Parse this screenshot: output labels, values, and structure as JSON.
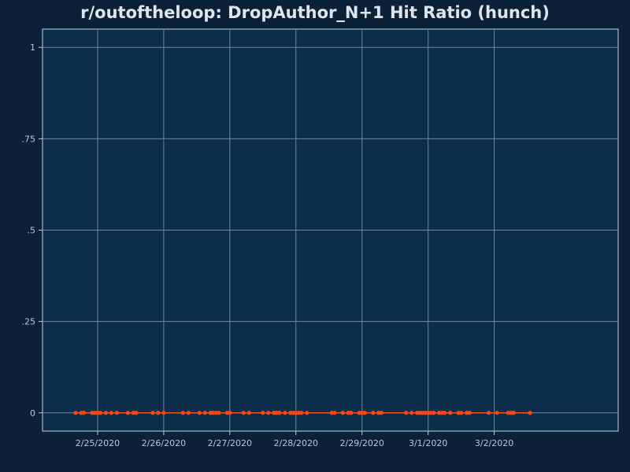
{
  "chart_data": {
    "type": "line",
    "title": "r/outoftheloop: DropAuthor_N+1 Hit Ratio (hunch)",
    "xlabel": "",
    "ylabel": "",
    "ylim": [
      -0.05,
      1.05
    ],
    "xlim": [
      "2020-02-24 04:00",
      "2020-03-03 21:00"
    ],
    "grid": true,
    "x_ticks": [
      "2/25/2020",
      "2/26/2020",
      "2/27/2020",
      "2/28/2020",
      "2/29/2020",
      "3/1/2020",
      "3/2/2020"
    ],
    "y_ticks": [
      {
        "value": 0,
        "label": "0"
      },
      {
        "value": 0.25,
        "label": ".25"
      },
      {
        "value": 0.5,
        "label": ".5"
      },
      {
        "value": 0.75,
        "label": ".75"
      },
      {
        "value": 1,
        "label": "1"
      }
    ],
    "series": [
      {
        "color": "#f24a1a",
        "x": [
          "2020-02-24 16:00",
          "2020-02-24 18:00",
          "2020-02-24 19:00",
          "2020-02-24 22:00",
          "2020-02-24 23:00",
          "2020-02-25 00:00",
          "2020-02-25 01:00",
          "2020-02-25 03:00",
          "2020-02-25 05:00",
          "2020-02-25 07:00",
          "2020-02-25 11:00",
          "2020-02-25 13:00",
          "2020-02-25 14:00",
          "2020-02-25 20:00",
          "2020-02-25 22:00",
          "2020-02-26 00:00",
          "2020-02-26 07:00",
          "2020-02-26 09:00",
          "2020-02-26 13:00",
          "2020-02-26 15:00",
          "2020-02-26 17:00",
          "2020-02-26 18:00",
          "2020-02-26 19:00",
          "2020-02-26 20:00",
          "2020-02-26 23:00",
          "2020-02-27 00:00",
          "2020-02-27 05:00",
          "2020-02-27 07:00",
          "2020-02-27 12:00",
          "2020-02-27 14:00",
          "2020-02-27 16:00",
          "2020-02-27 17:00",
          "2020-02-27 18:00",
          "2020-02-27 20:00",
          "2020-02-27 22:00",
          "2020-02-27 23:00",
          "2020-02-28 00:00",
          "2020-02-28 01:00",
          "2020-02-28 02:00",
          "2020-02-28 04:00",
          "2020-02-28 13:00",
          "2020-02-28 14:00",
          "2020-02-28 17:00",
          "2020-02-28 19:00",
          "2020-02-28 20:00",
          "2020-02-28 23:00",
          "2020-02-29 00:00",
          "2020-02-29 01:00",
          "2020-02-29 04:00",
          "2020-02-29 06:00",
          "2020-02-29 07:00",
          "2020-02-29 16:00",
          "2020-02-29 18:00",
          "2020-02-29 20:00",
          "2020-02-29 21:00",
          "2020-02-29 22:00",
          "2020-02-29 23:00",
          "2020-03-01 00:00",
          "2020-03-01 01:00",
          "2020-03-01 02:00",
          "2020-03-01 04:00",
          "2020-03-01 05:00",
          "2020-03-01 06:00",
          "2020-03-01 08:00",
          "2020-03-01 11:00",
          "2020-03-01 12:00",
          "2020-03-01 14:00",
          "2020-03-01 15:00",
          "2020-03-01 22:00",
          "2020-03-02 01:00",
          "2020-03-02 05:00",
          "2020-03-02 06:00",
          "2020-03-02 07:00",
          "2020-03-02 13:00"
        ],
        "y": [
          0,
          0,
          0,
          0,
          0,
          0,
          0,
          0,
          0,
          0,
          0,
          0,
          0,
          0,
          0,
          0,
          0,
          0,
          0,
          0,
          0,
          0,
          0,
          0,
          0,
          0,
          0,
          0,
          0,
          0,
          0,
          0,
          0,
          0,
          0,
          0,
          0,
          0,
          0,
          0,
          0,
          0,
          0,
          0,
          0,
          0,
          0,
          0,
          0,
          0,
          0,
          0,
          0,
          0,
          0,
          0,
          0,
          0,
          0,
          0,
          0,
          0,
          0,
          0,
          0,
          0,
          0,
          0,
          0,
          0,
          0,
          0,
          0,
          0
        ]
      }
    ]
  }
}
